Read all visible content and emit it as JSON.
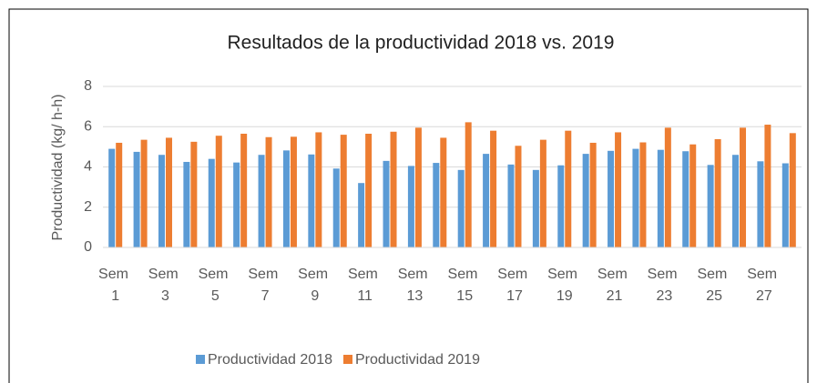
{
  "chart_data": {
    "type": "bar",
    "title": "Resultados de la productividad 2018 vs. 2019",
    "y_label": "Productividad (kg/ h-h)",
    "categories": [
      "Sem 1",
      null,
      "Sem 3",
      null,
      "Sem 5",
      null,
      "Sem 7",
      null,
      "Sem 9",
      null,
      "Sem 11",
      null,
      "Sem 13",
      null,
      "Sem 15",
      null,
      "Sem 17",
      null,
      "Sem 19",
      null,
      "Sem 21",
      null,
      "Sem 23",
      null,
      "Sem 25",
      null,
      "Sem 27",
      null
    ],
    "series": [
      {
        "name": "Productividad 2018",
        "color": "#5b9bd5",
        "values": [
          4.9,
          4.75,
          4.6,
          4.25,
          4.4,
          4.22,
          4.6,
          4.82,
          4.62,
          3.92,
          3.2,
          4.3,
          4.05,
          4.2,
          3.85,
          4.65,
          4.12,
          3.85,
          4.08,
          4.65,
          4.8,
          4.9,
          4.85,
          4.78,
          4.1,
          4.6,
          4.28,
          4.18
        ]
      },
      {
        "name": "Productividad 2019",
        "color": "#ed7d31",
        "values": [
          5.2,
          5.35,
          5.45,
          5.25,
          5.55,
          5.65,
          5.48,
          5.5,
          5.72,
          5.6,
          5.65,
          5.75,
          5.95,
          5.45,
          6.22,
          5.8,
          5.05,
          5.35,
          5.8,
          5.2,
          5.72,
          5.22,
          5.95,
          5.12,
          5.38,
          5.95,
          6.1,
          5.68
        ]
      }
    ],
    "ylim": [
      0,
      8
    ],
    "yticks": [
      0,
      2,
      4,
      6,
      8
    ],
    "grid": true,
    "legend": "bottom"
  }
}
